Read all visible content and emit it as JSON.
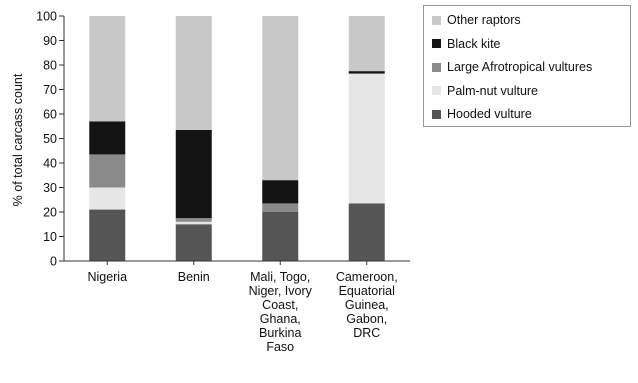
{
  "chart_data": {
    "type": "bar",
    "stacked": true,
    "ylabel": "% of total carcass count",
    "ylim": [
      0,
      100
    ],
    "yticks": [
      0,
      10,
      20,
      30,
      40,
      50,
      60,
      70,
      80,
      90,
      100
    ],
    "grid": false,
    "legend_position": "top-right",
    "categories": [
      [
        "Nigeria"
      ],
      [
        "Benin"
      ],
      [
        "Mali, Togo,",
        "Niger, Ivory",
        "Coast,",
        "Ghana,",
        "Burkina",
        "Faso"
      ],
      [
        "Cameroon,",
        "Equatorial",
        "Guinea,",
        "Gabon,",
        "DRC"
      ]
    ],
    "series": [
      {
        "name": "Hooded vulture",
        "color": "#555555",
        "values": [
          21,
          15,
          20,
          23.5
        ]
      },
      {
        "name": "Palm-nut vulture",
        "color": "#e6e6e6",
        "values": [
          9,
          1,
          0,
          53
        ]
      },
      {
        "name": "Large Afrotropical vultures",
        "color": "#8a8a8a",
        "values": [
          13.5,
          1.5,
          3.5,
          0
        ]
      },
      {
        "name": "Black kite",
        "color": "#141414",
        "values": [
          13.5,
          36,
          9.5,
          1
        ]
      },
      {
        "name": "Other raptors",
        "color": "#c8c8c8",
        "values": [
          43,
          46.5,
          67,
          22.5
        ]
      }
    ],
    "legend_order": [
      "Other raptors",
      "Black kite",
      "Large Afrotropical vultures",
      "Palm-nut vulture",
      "Hooded vulture"
    ]
  }
}
